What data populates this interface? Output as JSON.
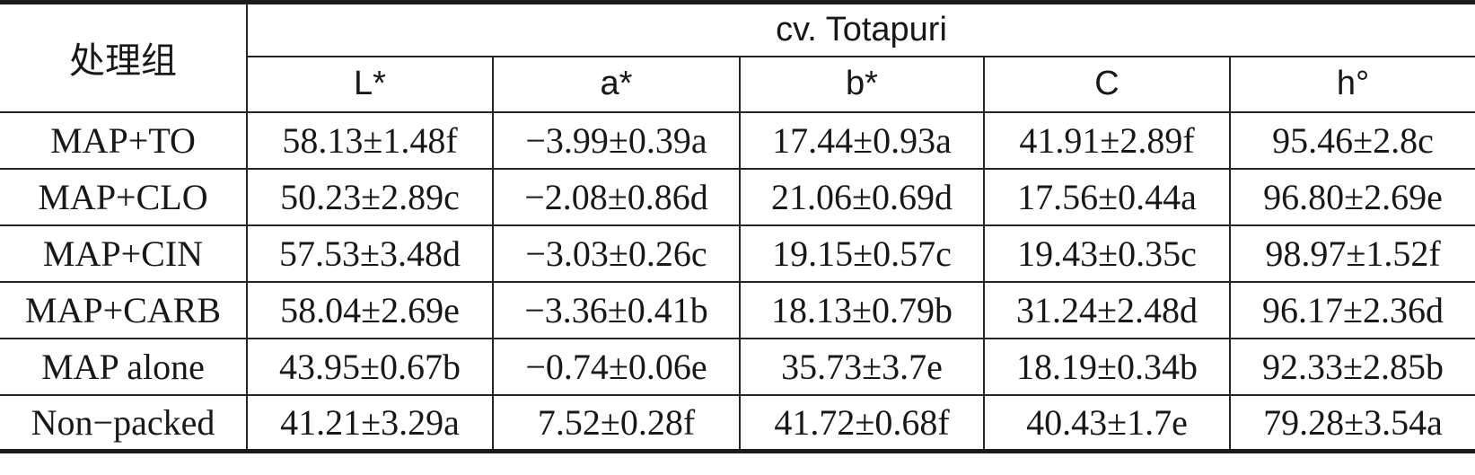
{
  "table": {
    "row_header_label": "处理组",
    "group_header": "cv. Totapuri",
    "columns": [
      "L*",
      "a*",
      "b*",
      "C",
      "h°"
    ],
    "rows": [
      {
        "label": "MAP+TO",
        "values": [
          "58.13±1.48f",
          "−3.99±0.39a",
          "17.44±0.93a",
          "41.91±2.89f",
          "95.46±2.8c"
        ]
      },
      {
        "label": "MAP+CLO",
        "values": [
          "50.23±2.89c",
          "−2.08±0.86d",
          "21.06±0.69d",
          "17.56±0.44a",
          "96.80±2.69e"
        ]
      },
      {
        "label": "MAP+CIN",
        "values": [
          "57.53±3.48d",
          "−3.03±0.26c",
          "19.15±0.57c",
          "19.43±0.35c",
          "98.97±1.52f"
        ]
      },
      {
        "label": "MAP+CARB",
        "values": [
          "58.04±2.69e",
          "−3.36±0.41b",
          "18.13±0.79b",
          "31.24±2.48d",
          "96.17±2.36d"
        ]
      },
      {
        "label": "MAP alone",
        "values": [
          "43.95±0.67b",
          "−0.74±0.06e",
          "35.73±3.7e",
          "18.19±0.34b",
          "92.33±2.85b"
        ]
      },
      {
        "label": "Non−packed",
        "values": [
          "41.21±3.29a",
          "7.52±0.28f",
          "41.72±0.68f",
          "40.43±1.7e",
          "79.28±3.54a"
        ]
      }
    ],
    "colors": {
      "border": "#242424",
      "heavy_rule": "#1b1b1b",
      "text": "#181818",
      "background": "#ffffff"
    }
  }
}
